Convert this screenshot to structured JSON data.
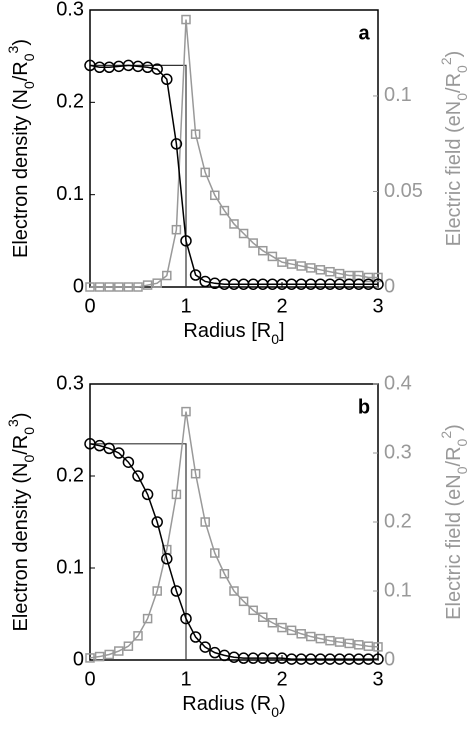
{
  "chart_data": [
    {
      "type": "line",
      "panel_label": "a",
      "xlabel": [
        {
          "text": "Radius [R"
        },
        {
          "text": "0",
          "shift": "sub"
        },
        {
          "text": "]"
        }
      ],
      "ylabel": [
        {
          "text": "Electron density (N"
        },
        {
          "text": "0",
          "shift": "sub"
        },
        {
          "text": "/R"
        },
        {
          "text": "0",
          "shift": "sub"
        },
        {
          "text": "3",
          "shift": "super"
        },
        {
          "text": ")"
        }
      ],
      "y2label": [
        {
          "text": "Electric field (eN"
        },
        {
          "text": "0",
          "shift": "sub"
        },
        {
          "text": "/R"
        },
        {
          "text": "0",
          "shift": "sub"
        },
        {
          "text": "2",
          "shift": "super"
        },
        {
          "text": ")"
        }
      ],
      "xlim": [
        0,
        3
      ],
      "xticks": [
        0,
        1,
        2,
        3
      ],
      "ylim": [
        0,
        0.3
      ],
      "yticks": [
        0,
        0.1,
        0.2,
        0.3
      ],
      "y2lim": [
        0,
        0.145
      ],
      "y2ticks": [
        0,
        0.05,
        0.1
      ],
      "y2color": "#999999",
      "x": [
        0,
        0.1,
        0.2,
        0.3,
        0.4,
        0.5,
        0.6,
        0.7,
        0.8,
        0.9,
        1,
        1.1,
        1.2,
        1.3,
        1.4,
        1.5,
        1.6,
        1.7,
        1.8,
        1.9,
        2,
        2.1,
        2.2,
        2.3,
        2.4,
        2.5,
        2.6,
        2.7,
        2.8,
        2.9,
        3
      ],
      "reference_line": {
        "color": "#333333",
        "x": [
          0,
          1,
          1
        ],
        "y": [
          0.24,
          0.24,
          0
        ]
      },
      "series": [
        {
          "color": "#000000",
          "marker": "circle",
          "values": [
            0.24,
            0.238,
            0.238,
            0.239,
            0.24,
            0.239,
            0.238,
            0.236,
            0.225,
            0.155,
            0.05,
            0.013,
            0.006,
            0.004,
            0.003,
            0.003,
            0.003,
            0.003,
            0.003,
            0.003,
            0.003,
            0.003,
            0.003,
            0.003,
            0.003,
            0.003,
            0.003,
            0.003,
            0.003,
            0.003,
            0.003
          ]
        },
        {
          "color": "#999999",
          "marker": "square",
          "axis": "y2",
          "values": [
            0,
            0,
            0,
            0,
            0,
            0,
            0.001,
            0.002,
            0.006,
            0.03,
            0.14,
            0.08,
            0.06,
            0.048,
            0.04,
            0.033,
            0.028,
            0.023,
            0.019,
            0.016,
            0.013,
            0.012,
            0.011,
            0.01,
            0.009,
            0.008,
            0.007,
            0.006,
            0.006,
            0.005,
            0.005
          ]
        }
      ]
    },
    {
      "type": "line",
      "panel_label": "b",
      "xlabel": [
        {
          "text": "Radius (R"
        },
        {
          "text": "0",
          "shift": "sub"
        },
        {
          "text": ")"
        }
      ],
      "ylabel": [
        {
          "text": "Electron density (N"
        },
        {
          "text": "0",
          "shift": "sub"
        },
        {
          "text": "/R"
        },
        {
          "text": "0",
          "shift": "sub"
        },
        {
          "text": "3",
          "shift": "super"
        },
        {
          "text": ")"
        }
      ],
      "y2label": [
        {
          "text": "Electric field (eN"
        },
        {
          "text": "0",
          "shift": "sub"
        },
        {
          "text": "/R"
        },
        {
          "text": "0",
          "shift": "sub"
        },
        {
          "text": "2",
          "shift": "super"
        },
        {
          "text": ")"
        }
      ],
      "xlim": [
        0,
        3
      ],
      "xticks": [
        0,
        1,
        2,
        3
      ],
      "ylim": [
        0,
        0.3
      ],
      "yticks": [
        0,
        0.1,
        0.2,
        0.3
      ],
      "y2lim": [
        0,
        0.4
      ],
      "y2ticks": [
        0,
        0.1,
        0.2,
        0.3,
        0.4
      ],
      "y2color": "#999999",
      "x": [
        0,
        0.1,
        0.2,
        0.3,
        0.4,
        0.5,
        0.6,
        0.7,
        0.8,
        0.9,
        1,
        1.1,
        1.2,
        1.3,
        1.4,
        1.5,
        1.6,
        1.7,
        1.8,
        1.9,
        2,
        2.1,
        2.2,
        2.3,
        2.4,
        2.5,
        2.6,
        2.7,
        2.8,
        2.9,
        3
      ],
      "reference_line": {
        "color": "#333333",
        "x": [
          0,
          1,
          1
        ],
        "y": [
          0.235,
          0.235,
          0
        ]
      },
      "series": [
        {
          "color": "#000000",
          "marker": "circle",
          "values": [
            0.235,
            0.233,
            0.23,
            0.225,
            0.215,
            0.2,
            0.18,
            0.15,
            0.11,
            0.075,
            0.045,
            0.025,
            0.014,
            0.008,
            0.005,
            0.003,
            0.002,
            0.002,
            0.002,
            0.002,
            0.002,
            0.001,
            0.001,
            0.001,
            0.001,
            0.001,
            0.001,
            0.001,
            0.001,
            0.001,
            0.001
          ]
        },
        {
          "color": "#999999",
          "marker": "square",
          "axis": "y2",
          "values": [
            0.003,
            0.005,
            0.008,
            0.013,
            0.02,
            0.035,
            0.06,
            0.1,
            0.16,
            0.24,
            0.36,
            0.27,
            0.2,
            0.155,
            0.125,
            0.1,
            0.085,
            0.072,
            0.062,
            0.054,
            0.047,
            0.043,
            0.038,
            0.034,
            0.031,
            0.028,
            0.026,
            0.024,
            0.022,
            0.02,
            0.019
          ]
        }
      ]
    }
  ]
}
